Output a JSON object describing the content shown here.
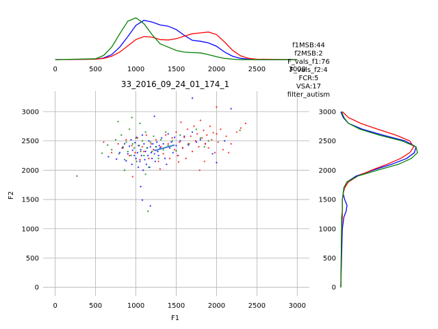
{
  "chart_data": {
    "type": "scatter",
    "title": "33_2016_09_24_01_174_1",
    "xlabel": "F1",
    "ylabel": "F2",
    "xlim": [
      -150,
      3150
    ],
    "ylim": [
      -150,
      3350
    ],
    "xticks": [
      0,
      500,
      1000,
      1500,
      2000,
      2500,
      3000
    ],
    "yticks": [
      0,
      500,
      1000,
      1500,
      2000,
      2500,
      3000
    ],
    "grid": true,
    "info_text": [
      "f1MSB:44",
      "f2MSB:2",
      "F_vals_f1:76",
      "F_vals_f2:4",
      "FCR:5",
      "VSA:17",
      "filter_autism"
    ],
    "colors": {
      "series_a": "#0000ff",
      "series_b": "#ff0000",
      "series_c": "#008000",
      "trend": "#3a7fc8",
      "grid": "#b0b0b0"
    },
    "series": [
      {
        "color": "#0000ff",
        "points": [
          [
            660,
            2230
          ],
          [
            760,
            2190
          ],
          [
            800,
            2300
          ],
          [
            830,
            2380
          ],
          [
            860,
            2450
          ],
          [
            880,
            2160
          ],
          [
            900,
            2280
          ],
          [
            920,
            2410
          ],
          [
            940,
            2520
          ],
          [
            950,
            2100
          ],
          [
            960,
            2340
          ],
          [
            980,
            2250
          ],
          [
            990,
            2470
          ],
          [
            1000,
            2200
          ],
          [
            1010,
            2560
          ],
          [
            1020,
            2300
          ],
          [
            1030,
            2050
          ],
          [
            1040,
            2420
          ],
          [
            1050,
            2150
          ],
          [
            1060,
            2350
          ],
          [
            1070,
            2250
          ],
          [
            1080,
            2600
          ],
          [
            1090,
            2000
          ],
          [
            1100,
            2450
          ],
          [
            1110,
            2180
          ],
          [
            1120,
            2320
          ],
          [
            1130,
            2100
          ],
          [
            1140,
            2380
          ],
          [
            1150,
            2250
          ],
          [
            1160,
            2500
          ],
          [
            1170,
            2050
          ],
          [
            1180,
            2400
          ],
          [
            1190,
            2300
          ],
          [
            1200,
            2200
          ],
          [
            1210,
            2450
          ],
          [
            1220,
            2350
          ],
          [
            1230,
            2280
          ],
          [
            1240,
            2150
          ],
          [
            1250,
            2400
          ],
          [
            1260,
            2480
          ],
          [
            1270,
            2320
          ],
          [
            1280,
            2250
          ],
          [
            1290,
            2420
          ],
          [
            1300,
            2380
          ],
          [
            1320,
            2550
          ],
          [
            1340,
            2450
          ],
          [
            1360,
            2200
          ],
          [
            1380,
            2100
          ],
          [
            1400,
            2620
          ],
          [
            1420,
            2380
          ],
          [
            1440,
            2480
          ],
          [
            1460,
            2300
          ],
          [
            1480,
            2560
          ],
          [
            1500,
            2420
          ],
          [
            1520,
            2250
          ],
          [
            1550,
            2500
          ],
          [
            1580,
            2380
          ],
          [
            1600,
            2580
          ],
          [
            1650,
            2430
          ],
          [
            1700,
            2650
          ],
          [
            1750,
            2480
          ],
          [
            1800,
            2520
          ],
          [
            1860,
            2450
          ],
          [
            1950,
            2280
          ],
          [
            2000,
            2130
          ],
          [
            2100,
            2500
          ],
          [
            2180,
            3050
          ],
          [
            1700,
            3230
          ],
          [
            1060,
            1720
          ],
          [
            1080,
            1490
          ],
          [
            1180,
            1390
          ],
          [
            1230,
            2920
          ]
        ]
      },
      {
        "color": "#ff0000",
        "points": [
          [
            600,
            2480
          ],
          [
            700,
            2300
          ],
          [
            780,
            2450
          ],
          [
            840,
            2380
          ],
          [
            880,
            2520
          ],
          [
            920,
            2250
          ],
          [
            950,
            2420
          ],
          [
            990,
            2300
          ],
          [
            1020,
            2550
          ],
          [
            1050,
            2180
          ],
          [
            1080,
            2400
          ],
          [
            1100,
            2320
          ],
          [
            1130,
            2600
          ],
          [
            1160,
            2200
          ],
          [
            1190,
            2450
          ],
          [
            1220,
            2350
          ],
          [
            1250,
            2520
          ],
          [
            1280,
            2150
          ],
          [
            1310,
            2400
          ],
          [
            1340,
            2280
          ],
          [
            1370,
            2600
          ],
          [
            1400,
            2450
          ],
          [
            1420,
            2200
          ],
          [
            1450,
            2550
          ],
          [
            1480,
            2350
          ],
          [
            1500,
            2650
          ],
          [
            1520,
            2250
          ],
          [
            1540,
            2480
          ],
          [
            1560,
            2820
          ],
          [
            1580,
            2380
          ],
          [
            1600,
            2560
          ],
          [
            1620,
            2200
          ],
          [
            1640,
            2700
          ],
          [
            1660,
            2450
          ],
          [
            1680,
            2580
          ],
          [
            1700,
            2320
          ],
          [
            1720,
            2750
          ],
          [
            1740,
            2500
          ],
          [
            1760,
            2620
          ],
          [
            1780,
            2400
          ],
          [
            1800,
            2850
          ],
          [
            1820,
            2550
          ],
          [
            1840,
            2680
          ],
          [
            1860,
            2450
          ],
          [
            1880,
            2600
          ],
          [
            1900,
            2380
          ],
          [
            1920,
            2750
          ],
          [
            1940,
            2520
          ],
          [
            1960,
            2640
          ],
          [
            1980,
            2300
          ],
          [
            2000,
            3080
          ],
          [
            2020,
            2480
          ],
          [
            2050,
            2700
          ],
          [
            2080,
            2350
          ],
          [
            2120,
            2580
          ],
          [
            2180,
            2450
          ],
          [
            2250,
            2650
          ],
          [
            2300,
            2720
          ],
          [
            2360,
            2800
          ],
          [
            2000,
            2620
          ],
          [
            1530,
            2140
          ],
          [
            1300,
            2020
          ],
          [
            960,
            1890
          ],
          [
            1790,
            2000
          ],
          [
            1850,
            2150
          ],
          [
            2150,
            2300
          ]
        ]
      },
      {
        "color": "#008000",
        "points": [
          [
            270,
            1900
          ],
          [
            580,
            2290
          ],
          [
            650,
            2430
          ],
          [
            700,
            2350
          ],
          [
            750,
            2520
          ],
          [
            790,
            2280
          ],
          [
            820,
            2600
          ],
          [
            840,
            2400
          ],
          [
            860,
            2180
          ],
          [
            880,
            2480
          ],
          [
            900,
            2320
          ],
          [
            920,
            2700
          ],
          [
            940,
            2250
          ],
          [
            950,
            2900
          ],
          [
            960,
            2450
          ],
          [
            980,
            2380
          ],
          [
            1000,
            2550
          ],
          [
            1010,
            2150
          ],
          [
            1030,
            2420
          ],
          [
            1050,
            2800
          ],
          [
            1060,
            2320
          ],
          [
            1080,
            2500
          ],
          [
            1100,
            2250
          ],
          [
            1120,
            2650
          ],
          [
            1140,
            2380
          ],
          [
            1160,
            2050
          ],
          [
            1180,
            2480
          ],
          [
            1200,
            2320
          ],
          [
            1220,
            2580
          ],
          [
            1250,
            2400
          ],
          [
            1280,
            2200
          ],
          [
            1310,
            2520
          ],
          [
            1340,
            2350
          ],
          [
            1370,
            2650
          ],
          [
            1400,
            2420
          ],
          [
            1450,
            2500
          ],
          [
            1500,
            2330
          ],
          [
            1550,
            2600
          ],
          [
            1650,
            2450
          ],
          [
            1750,
            2700
          ],
          [
            1800,
            2550
          ],
          [
            1850,
            2400
          ],
          [
            1900,
            2500
          ],
          [
            780,
            2830
          ],
          [
            1150,
            1300
          ],
          [
            2290,
            2680
          ],
          [
            860,
            2000
          ],
          [
            1120,
            1930
          ]
        ]
      }
    ],
    "trend_line": [
      [
        1230,
        2335
      ],
      [
        1480,
        2430
      ]
    ],
    "kde_f1": {
      "x": [
        0,
        500,
        600,
        700,
        800,
        900,
        1000,
        1100,
        1200,
        1300,
        1400,
        1500,
        1600,
        1700,
        1800,
        1900,
        2000,
        2100,
        2200,
        2300,
        2400,
        2500,
        3000
      ],
      "series": [
        {
          "color": "#0000ff",
          "density": [
            0,
            0.01,
            0.04,
            0.12,
            0.3,
            0.55,
            0.82,
            0.94,
            0.9,
            0.83,
            0.8,
            0.72,
            0.58,
            0.46,
            0.44,
            0.4,
            0.32,
            0.18,
            0.08,
            0.03,
            0.01,
            0,
            0
          ]
        },
        {
          "color": "#ff0000",
          "density": [
            0,
            0.01,
            0.03,
            0.08,
            0.18,
            0.33,
            0.48,
            0.55,
            0.54,
            0.48,
            0.47,
            0.5,
            0.56,
            0.62,
            0.64,
            0.66,
            0.6,
            0.42,
            0.22,
            0.09,
            0.03,
            0.01,
            0
          ]
        },
        {
          "color": "#008000",
          "density": [
            0,
            0.02,
            0.1,
            0.3,
            0.62,
            0.92,
            1.0,
            0.86,
            0.6,
            0.38,
            0.3,
            0.22,
            0.18,
            0.17,
            0.16,
            0.12,
            0.07,
            0.03,
            0.01,
            0,
            0,
            0,
            0
          ]
        }
      ]
    },
    "kde_f2": {
      "y": [
        0,
        1000,
        1200,
        1300,
        1400,
        1500,
        1600,
        1700,
        1800,
        1900,
        2000,
        2100,
        2200,
        2300,
        2400,
        2500,
        2600,
        2700,
        2800,
        2900,
        3000
      ],
      "series": [
        {
          "color": "#0000ff",
          "density": [
            0,
            0.02,
            0.04,
            0.07,
            0.08,
            0.05,
            0.03,
            0.04,
            0.08,
            0.2,
            0.42,
            0.66,
            0.86,
            0.96,
            0.98,
            0.84,
            0.55,
            0.28,
            0.1,
            0.03,
            0
          ]
        },
        {
          "color": "#ff0000",
          "density": [
            0,
            0.01,
            0.02,
            0.02,
            0.02,
            0.02,
            0.03,
            0.05,
            0.1,
            0.22,
            0.4,
            0.6,
            0.78,
            0.9,
            0.95,
            0.9,
            0.72,
            0.48,
            0.26,
            0.1,
            0.02
          ]
        },
        {
          "color": "#008000",
          "density": [
            0,
            0.01,
            0.01,
            0.02,
            0.02,
            0.02,
            0.03,
            0.04,
            0.08,
            0.22,
            0.48,
            0.75,
            0.92,
            1.0,
            0.98,
            0.8,
            0.5,
            0.25,
            0.1,
            0.04,
            0.01
          ]
        }
      ]
    }
  }
}
